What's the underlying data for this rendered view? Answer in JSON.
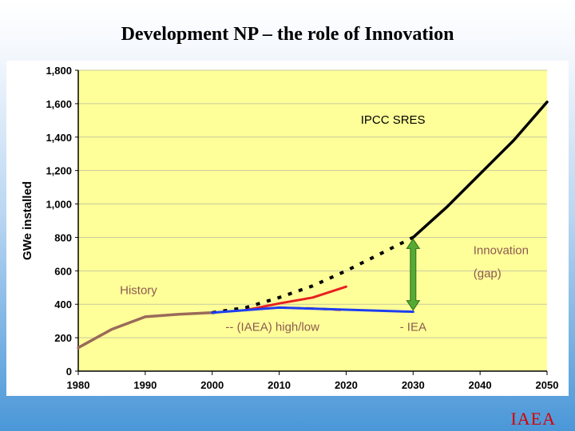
{
  "slide": {
    "title": "Development NP – the role of Innovation",
    "logo": "IAEA"
  },
  "colors": {
    "plot_bg": "#ffff99",
    "history": "#9a6a5a",
    "sres": "#000000",
    "iaea_high": "#e82020",
    "iaea_low": "#e82020",
    "iea": "#1e3ef0",
    "arrow": "#55aa33",
    "annotation_text": "#8b5a50"
  },
  "chart_data": {
    "type": "line",
    "title": "",
    "xlabel": "",
    "ylabel": "GWe installed",
    "xlim": [
      1980,
      2050
    ],
    "ylim": [
      0,
      1800
    ],
    "xticks": [
      "1980",
      "1990",
      "2000",
      "2010",
      "2020",
      "2030",
      "2040",
      "2050"
    ],
    "yticks": [
      "0",
      "200",
      "400",
      "600",
      "800",
      "1,000",
      "1,200",
      "1,400",
      "1,600",
      "1,800"
    ],
    "grid": "horizontal",
    "series": [
      {
        "key": "history",
        "style": "solid",
        "x": [
          1980,
          1985,
          1990,
          1995,
          2000
        ],
        "y": [
          140,
          250,
          325,
          340,
          350
        ]
      },
      {
        "key": "sres_projection",
        "style": "dotted",
        "x": [
          2000,
          2005,
          2010,
          2015,
          2020,
          2025,
          2030
        ],
        "y": [
          350,
          380,
          440,
          510,
          600,
          700,
          800
        ]
      },
      {
        "key": "sres_projection_late",
        "style": "solid",
        "x": [
          2030,
          2035,
          2040,
          2045,
          2050
        ],
        "y": [
          800,
          980,
          1180,
          1380,
          1610
        ]
      },
      {
        "key": "iaea_high",
        "style": "solid",
        "x": [
          2005,
          2010,
          2015,
          2020
        ],
        "y": [
          365,
          405,
          440,
          505
        ]
      },
      {
        "key": "iaea_low",
        "style": "dashed",
        "x": [
          2010,
          2015,
          2020
        ],
        "y": [
          380,
          375,
          365
        ]
      },
      {
        "key": "iea",
        "style": "solid",
        "x": [
          2000,
          2010,
          2030
        ],
        "y": [
          350,
          380,
          355
        ]
      }
    ],
    "annotations": [
      {
        "key": "sres",
        "text": "IPCC SRES",
        "x": 2027,
        "y": 1480
      },
      {
        "key": "innovation",
        "text": "Innovation",
        "x": 2039,
        "y": 700
      },
      {
        "key": "gap",
        "text": "(gap)",
        "x": 2039,
        "y": 560
      },
      {
        "key": "history",
        "text": "History",
        "x": 1989,
        "y": 460
      },
      {
        "key": "iaea",
        "text": "-- (IAEA) high/low",
        "x": 2009,
        "y": 240
      },
      {
        "key": "iea",
        "text": "- IEA",
        "x": 2030,
        "y": 240
      }
    ],
    "arrow": {
      "x": 2030,
      "y_from": 355,
      "y_to": 800
    }
  }
}
